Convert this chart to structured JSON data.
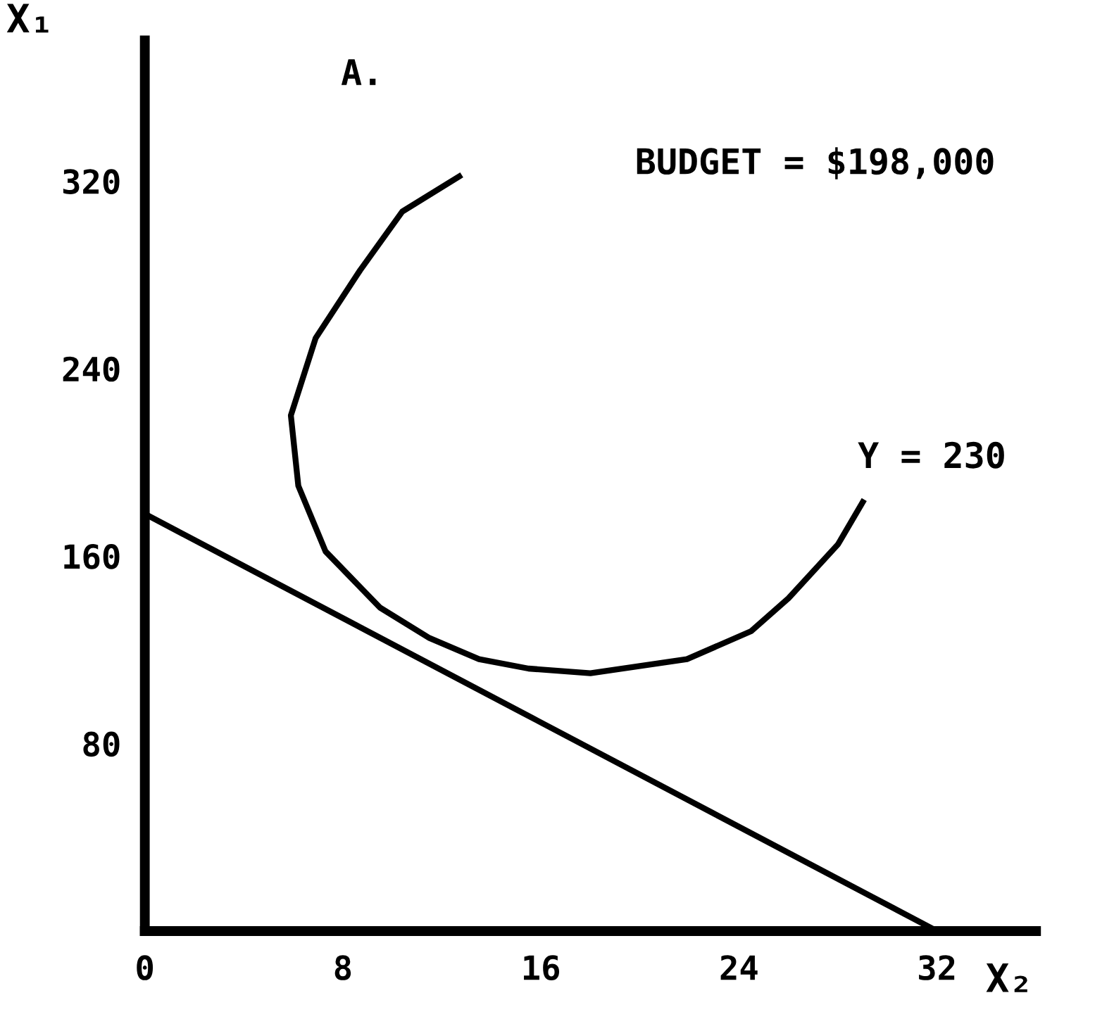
{
  "chart_data": {
    "type": "line",
    "xlabel": "X₂",
    "ylabel": "X₁",
    "annotations": [
      "A.",
      "BUDGET = $198,000",
      "Y = 230"
    ],
    "series": [
      {
        "color": "#000000",
        "x": [
          0,
          32
        ],
        "values": [
          178,
          0
        ]
      },
      {
        "color": "#000000",
        "x": [
          12.7,
          10.4,
          8.7,
          6.9,
          5.9,
          6.2,
          7.3,
          9.5,
          11.5,
          13.5,
          15.5,
          18,
          21.9,
          24.5,
          26,
          28,
          29
        ],
        "values": [
          322,
          307,
          282,
          253,
          220,
          190,
          162,
          138,
          125,
          116,
          112,
          110,
          116,
          128,
          142,
          165,
          183
        ]
      }
    ],
    "xlim": [
      0,
      36
    ],
    "ylim": [
      0,
      380
    ],
    "xticks": [
      0,
      8,
      16,
      24,
      32
    ],
    "yticks": [
      80,
      160,
      240,
      320
    ],
    "grid": false,
    "legend": false,
    "marker": "none",
    "line_style": "solid"
  }
}
